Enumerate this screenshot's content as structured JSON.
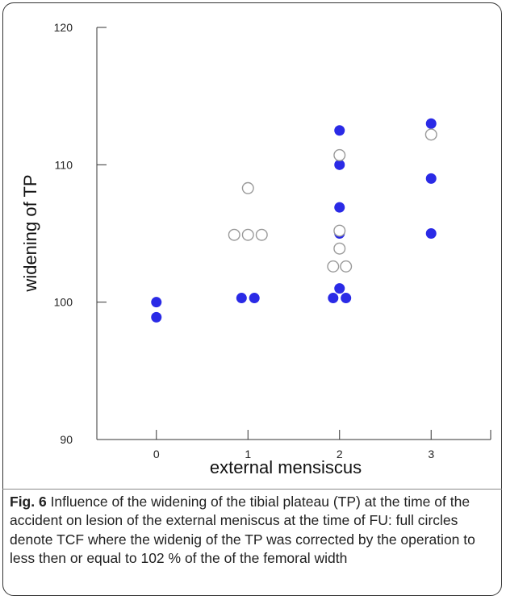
{
  "chart_data": {
    "type": "scatter",
    "xlabel": "external mensiscus",
    "ylabel": "widening of TP",
    "x_ticks": [
      0,
      1,
      2,
      3
    ],
    "y_ticks": [
      90,
      100,
      110,
      120
    ],
    "xlim": [
      -0.65,
      3.65
    ],
    "ylim": [
      90,
      120
    ],
    "colors": {
      "filled": "#2a2ae6",
      "open_stroke": "#9a9a9a"
    },
    "series": [
      {
        "marker": "filled",
        "points": [
          [
            0,
            100.0
          ],
          [
            0,
            98.9
          ],
          [
            0.93,
            100.3
          ],
          [
            1.07,
            100.3
          ],
          [
            2,
            112.5
          ],
          [
            2,
            110.0
          ],
          [
            2,
            106.9
          ],
          [
            2,
            105.0
          ],
          [
            2,
            101.0
          ],
          [
            1.93,
            100.3
          ],
          [
            2.07,
            100.3
          ],
          [
            3,
            113.0
          ],
          [
            3,
            109.0
          ],
          [
            3,
            105.0
          ]
        ]
      },
      {
        "marker": "open",
        "points": [
          [
            1,
            108.3
          ],
          [
            0.85,
            104.9
          ],
          [
            1,
            104.9
          ],
          [
            1.15,
            104.9
          ],
          [
            2,
            110.7
          ],
          [
            2,
            105.2
          ],
          [
            2,
            103.9
          ],
          [
            1.93,
            102.6
          ],
          [
            2.07,
            102.6
          ],
          [
            3,
            112.2
          ]
        ]
      }
    ]
  },
  "caption": {
    "label": "Fig. 6",
    "text": " Influence of the widening of the tibial plateau (TP) at the time of the accident on lesion of the external meniscus at the time of FU: full circles denote TCF where the widenig of the TP was corrected by the operation to less then or equal to 102 % of the of the femoral width"
  }
}
